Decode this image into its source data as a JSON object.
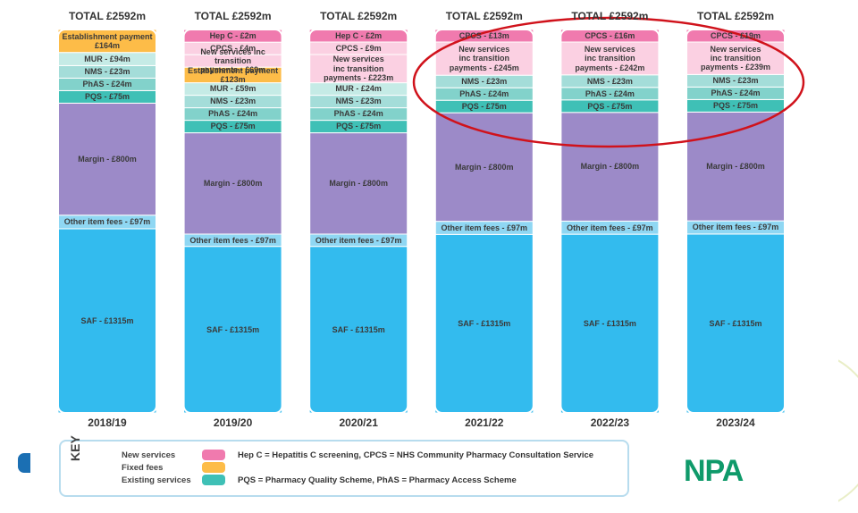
{
  "chart_data": {
    "type": "stacked-bar",
    "title": "",
    "ylabel": "",
    "xlabel": "",
    "categories": [
      "2018/19",
      "2019/20",
      "2020/21",
      "2021/22",
      "2022/23",
      "2023/24"
    ],
    "totals": [
      "TOTAL £2592m",
      "TOTAL £2592m",
      "TOTAL £2592m",
      "TOTAL £2592m",
      "TOTAL £2592m",
      "TOTAL £2592m"
    ],
    "colors": {
      "saf": "#33bbee",
      "other_fees": "#8fd7f3",
      "margin": "#9c8ac8",
      "pqs": "#3fc0b6",
      "phas": "#82d2cb",
      "nms": "#a4ddd9",
      "mur": "#c5ebe6",
      "fixed": "#fdbc48",
      "new_light": "#fbd0e2",
      "new_dark": "#f07aae"
    },
    "stacks": [
      [
        {
          "key": "saf",
          "label": "SAF - £1315m",
          "value": 1315
        },
        {
          "key": "other_fees",
          "label": "Other item fees - £97m",
          "value": 97
        },
        {
          "key": "margin",
          "label": "Margin - £800m",
          "value": 800
        },
        {
          "key": "pqs",
          "label": "PQS - £75m",
          "value": 75
        },
        {
          "key": "phas",
          "label": "PhAS - £24m",
          "value": 24
        },
        {
          "key": "nms",
          "label": "NMS - £23m",
          "value": 23
        },
        {
          "key": "mur",
          "label": "MUR - £94m",
          "value": 94
        },
        {
          "key": "fixed",
          "label": "Establishment payment\n£164m",
          "value": 164
        }
      ],
      [
        {
          "key": "saf",
          "label": "SAF - £1315m",
          "value": 1315
        },
        {
          "key": "other_fees",
          "label": "Other item fees - £97m",
          "value": 97
        },
        {
          "key": "margin",
          "label": "Margin - £800m",
          "value": 800
        },
        {
          "key": "pqs",
          "label": "PQS - £75m",
          "value": 75
        },
        {
          "key": "phas",
          "label": "PhAS - £24m",
          "value": 24
        },
        {
          "key": "nms",
          "label": "NMS - £23m",
          "value": 23
        },
        {
          "key": "mur",
          "label": "MUR - £59m",
          "value": 59
        },
        {
          "key": "fixed",
          "label": "Establishment payment\n£123m",
          "value": 123
        },
        {
          "key": "new_light",
          "label": "New services inc transition\npayments - £69m",
          "value": 69
        },
        {
          "key": "new_light",
          "label": "CPCS - £4m",
          "value": 4
        },
        {
          "key": "new_dark",
          "label": "Hep C - £2m",
          "value": 2
        }
      ],
      [
        {
          "key": "saf",
          "label": "SAF - £1315m",
          "value": 1315
        },
        {
          "key": "other_fees",
          "label": "Other item fees - £97m",
          "value": 97
        },
        {
          "key": "margin",
          "label": "Margin - £800m",
          "value": 800
        },
        {
          "key": "pqs",
          "label": "PQS - £75m",
          "value": 75
        },
        {
          "key": "phas",
          "label": "PhAS - £24m",
          "value": 24
        },
        {
          "key": "nms",
          "label": "NMS - £23m",
          "value": 23
        },
        {
          "key": "mur",
          "label": "MUR - £24m",
          "value": 24
        },
        {
          "key": "new_light",
          "label": "New services\ninc transition\npayments - £223m",
          "value": 223
        },
        {
          "key": "new_light",
          "label": "CPCS - £9m",
          "value": 9
        },
        {
          "key": "new_dark",
          "label": "Hep C - £2m",
          "value": 2
        }
      ],
      [
        {
          "key": "saf",
          "label": "SAF - £1315m",
          "value": 1315
        },
        {
          "key": "other_fees",
          "label": "Other item fees - £97m",
          "value": 97
        },
        {
          "key": "margin",
          "label": "Margin - £800m",
          "value": 800
        },
        {
          "key": "pqs",
          "label": "PQS - £75m",
          "value": 75
        },
        {
          "key": "phas",
          "label": "PhAS - £24m",
          "value": 24
        },
        {
          "key": "nms",
          "label": "NMS - £23m",
          "value": 23
        },
        {
          "key": "new_light",
          "label": "New services\ninc transition\npayments - £245m",
          "value": 245
        },
        {
          "key": "new_dark",
          "label": "CPCS - £13m",
          "value": 13
        }
      ],
      [
        {
          "key": "saf",
          "label": "SAF - £1315m",
          "value": 1315
        },
        {
          "key": "other_fees",
          "label": "Other item fees - £97m",
          "value": 97
        },
        {
          "key": "margin",
          "label": "Margin - £800m",
          "value": 800
        },
        {
          "key": "pqs",
          "label": "PQS - £75m",
          "value": 75
        },
        {
          "key": "phas",
          "label": "PhAS - £24m",
          "value": 24
        },
        {
          "key": "nms",
          "label": "NMS - £23m",
          "value": 23
        },
        {
          "key": "new_light",
          "label": "New services\ninc transition\npayments - £242m",
          "value": 242
        },
        {
          "key": "new_dark",
          "label": "CPCS - £16m",
          "value": 16
        }
      ],
      [
        {
          "key": "saf",
          "label": "SAF - £1315m",
          "value": 1315
        },
        {
          "key": "other_fees",
          "label": "Other item fees - £97m",
          "value": 97
        },
        {
          "key": "margin",
          "label": "Margin - £800m",
          "value": 800
        },
        {
          "key": "pqs",
          "label": "PQS - £75m",
          "value": 75
        },
        {
          "key": "phas",
          "label": "PhAS - £24m",
          "value": 24
        },
        {
          "key": "nms",
          "label": "NMS - £23m",
          "value": 23
        },
        {
          "key": "new_light",
          "label": "New services\ninc transition\npayments - £239m",
          "value": 239
        },
        {
          "key": "new_dark",
          "label": "CPCS - £19m",
          "value": 19
        }
      ]
    ],
    "highlight": {
      "categories": [
        "2021/22",
        "2022/23",
        "2023/24"
      ],
      "color": "#d0121b"
    }
  },
  "legend": {
    "key_text": "KEY",
    "items": [
      {
        "label": "New services",
        "color": "#f07aae"
      },
      {
        "label": "Fixed fees",
        "color": "#fdbc48"
      },
      {
        "label": "Existing services",
        "color": "#3fc0b6"
      }
    ],
    "descriptions": [
      "Hep C = Hepatitis C screening, CPCS = NHS Community Pharmacy Consultation Service",
      "PQS = Pharmacy Quality Scheme, PhAS = Pharmacy Access Scheme"
    ]
  },
  "logo": {
    "text": "NPA"
  }
}
